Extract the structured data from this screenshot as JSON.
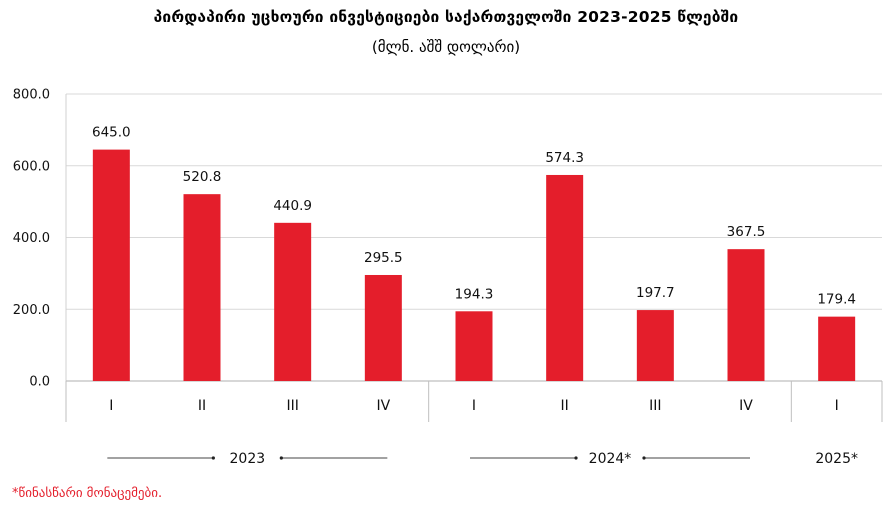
{
  "chart_data": {
    "type": "bar",
    "title": "პირდაპირი უცხოური ინვესტიციები საქართველოში 2023-2025 წლებში",
    "subtitle": "(მლნ. აშშ დოლარი)",
    "categories": [
      "I",
      "II",
      "III",
      "IV",
      "I",
      "II",
      "III",
      "IV",
      "I"
    ],
    "values": [
      645.0,
      520.8,
      440.9,
      295.5,
      194.3,
      574.3,
      197.7,
      367.5,
      179.4
    ],
    "value_labels": [
      "645.0",
      "520.8",
      "440.9",
      "295.5",
      "194.3",
      "574.3",
      "197.7",
      "367.5",
      "179.4"
    ],
    "groups": [
      {
        "label": "2023",
        "count": 4
      },
      {
        "label": "2024*",
        "count": 4
      },
      {
        "label": "2025*",
        "count": 1
      }
    ],
    "yticks": [
      "0.0",
      "200.0",
      "400.0",
      "600.0",
      "800.0"
    ],
    "ylim": [
      0,
      800
    ],
    "grid": true,
    "bar_color": "#e41e2b",
    "grid_color": "#d9d9d9"
  },
  "footnote": "*წინასწარი მონაცემები."
}
